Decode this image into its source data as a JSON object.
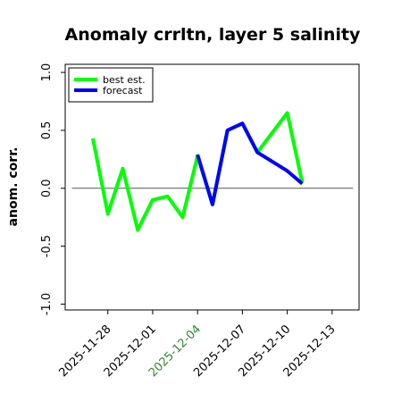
{
  "chart_data": {
    "type": "line",
    "title": "Anomaly crrltn, layer 5 salinity",
    "ylabel": "anom. corr.",
    "xlabel": "",
    "ylim": [
      -1.05,
      1.07
    ],
    "yticks": [
      {
        "value": -1.0,
        "label": "-1.0"
      },
      {
        "value": -0.5,
        "label": "-0.5"
      },
      {
        "value": 0.0,
        "label": "0.0"
      },
      {
        "value": 0.5,
        "label": "0.5"
      },
      {
        "value": 1.0,
        "label": "1.0"
      }
    ],
    "xticks": [
      {
        "index": 1,
        "label": "2025-11-28",
        "color": "#000000"
      },
      {
        "index": 4,
        "label": "2025-12-01",
        "color": "#000000"
      },
      {
        "index": 7,
        "label": "2025-12-04",
        "color": "#2e8b2e"
      },
      {
        "index": 10,
        "label": "2025-12-07",
        "color": "#000000"
      },
      {
        "index": 13,
        "label": "2025-12-10",
        "color": "#000000"
      },
      {
        "index": 16,
        "label": "2025-12-13",
        "color": "#000000"
      }
    ],
    "x_index_range": [
      -1.85,
      17.8
    ],
    "zero_line": 0.0,
    "series": [
      {
        "name": "best est.",
        "color": "#00ff00",
        "width": 4,
        "points": [
          [
            0,
            0.43
          ],
          [
            1,
            -0.22
          ],
          [
            2,
            0.17
          ],
          [
            3,
            -0.36
          ],
          [
            4,
            -0.1
          ],
          [
            5,
            -0.07
          ],
          [
            6,
            -0.25
          ],
          [
            7,
            0.28
          ],
          [
            8,
            -0.14
          ],
          [
            9,
            0.5
          ],
          [
            10,
            0.56
          ],
          [
            11,
            0.31
          ],
          [
            13,
            0.65
          ],
          [
            14,
            0.05
          ]
        ]
      },
      {
        "name": "forecast",
        "color": "#0000ff",
        "width": 4,
        "points": [
          [
            7,
            0.29
          ],
          [
            8,
            -0.14
          ],
          [
            9,
            0.5
          ],
          [
            10,
            0.56
          ],
          [
            11,
            0.31
          ],
          [
            13,
            0.15
          ],
          [
            14,
            0.04
          ]
        ]
      }
    ],
    "thin_lines": [
      {
        "color": "#00dd00",
        "width": 1,
        "points": [
          [
            11,
            0.31
          ],
          [
            13,
            0.65
          ]
        ]
      },
      {
        "color": "#0000ff",
        "width": 1,
        "points": [
          [
            11,
            0.31
          ],
          [
            13,
            0.15
          ]
        ]
      }
    ],
    "legend": {
      "position": "top-left",
      "items": [
        {
          "label": "best est.",
          "color": "#00ff00"
        },
        {
          "label": "forecast",
          "color": "#0000ff"
        }
      ]
    }
  }
}
